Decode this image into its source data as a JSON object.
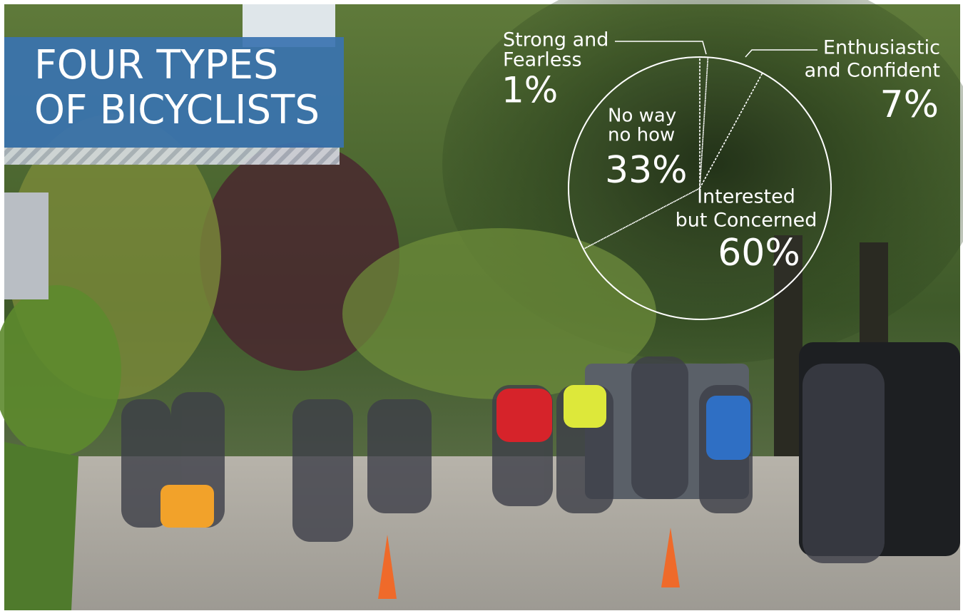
{
  "chart_data": {
    "type": "pie",
    "title": [
      "FOUR TYPES",
      "OF BICYCLISTS"
    ],
    "categories": [
      [
        "Strong and",
        "Fearless"
      ],
      [
        "Enthusiastic",
        "and Confident"
      ],
      [
        "Interested",
        "but Concerned"
      ],
      [
        "No way",
        "no how"
      ]
    ],
    "values": [
      1,
      7,
      60,
      33
    ],
    "value_labels": [
      "1%",
      "7%",
      "60%",
      "33%"
    ],
    "color": "#ffffff"
  }
}
